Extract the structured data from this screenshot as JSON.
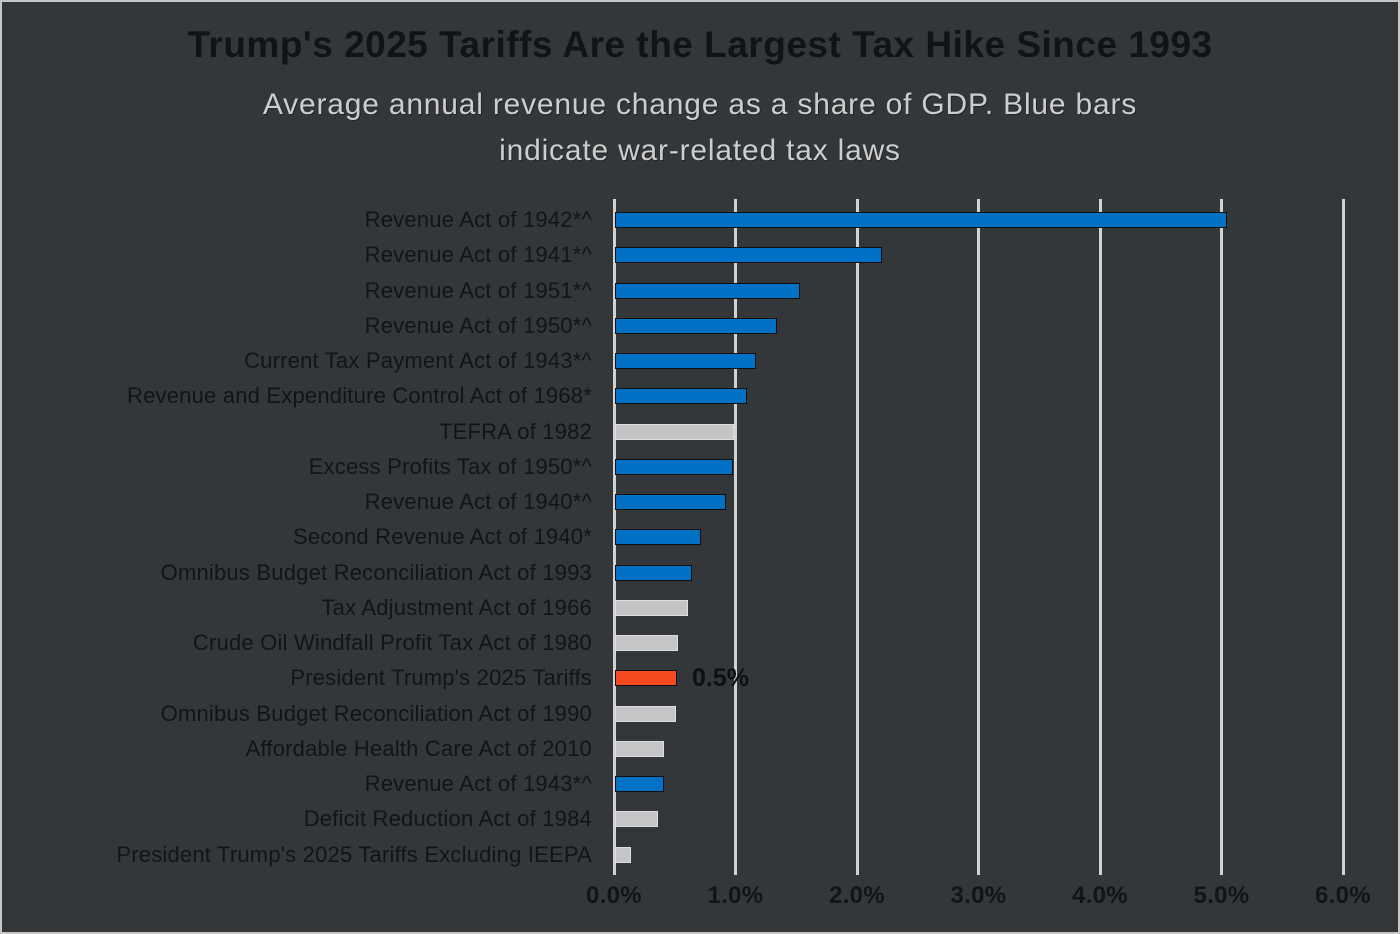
{
  "header": {
    "title": "Trump's 2025 Tariffs Are the Largest Tax Hike Since 1993",
    "subtitle_line1": "Average annual revenue change as a share of GDP. Blue bars",
    "subtitle_line2": "indicate war-related tax laws"
  },
  "colors": {
    "background": "#33373a",
    "frame_border": "#c6c6c6",
    "blue": "#0071c5",
    "orange": "#f54a1f",
    "gray": "#c5c5c7",
    "gridline": "#d2d2d2",
    "title_text": "#111315",
    "subtitle_text": "#cdcdcd",
    "label_text": "#121416"
  },
  "chart_data": {
    "type": "bar",
    "orientation": "horizontal",
    "title": "Trump's 2025 Tariffs Are the Largest Tax Hike Since 1993",
    "subtitle_lines": [
      "Average annual revenue change as a share of GDP. Blue bars",
      "indicate war-related tax laws"
    ],
    "xlabel": "",
    "ylabel": "",
    "xlim": [
      0,
      6
    ],
    "x_ticks": [
      "0.0%",
      "1.0%",
      "2.0%",
      "3.0%",
      "4.0%",
      "5.0%",
      "6.0%"
    ],
    "x_tick_values": [
      0,
      1,
      2,
      3,
      4,
      5,
      6
    ],
    "grid": "vertical",
    "legend": "none",
    "unit": "% of GDP",
    "bars": [
      {
        "label": "Revenue Act of 1942*^",
        "value": 5.04,
        "color": "blue"
      },
      {
        "label": "Revenue Act of 1941*^",
        "value": 2.2,
        "color": "blue"
      },
      {
        "label": "Revenue Act of 1951*^",
        "value": 1.52,
        "color": "blue"
      },
      {
        "label": "Revenue Act of 1950*^",
        "value": 1.33,
        "color": "blue"
      },
      {
        "label": "Current Tax Payment Act of 1943*^",
        "value": 1.16,
        "color": "blue"
      },
      {
        "label": "Revenue and Expenditure Control Act of 1968*",
        "value": 1.09,
        "color": "blue"
      },
      {
        "label": "TEFRA of 1982",
        "value": 0.98,
        "color": "gray"
      },
      {
        "label": "Excess Profits Tax of 1950*^",
        "value": 0.97,
        "color": "blue"
      },
      {
        "label": "Revenue Act of 1940*^",
        "value": 0.91,
        "color": "blue"
      },
      {
        "label": "Second Revenue Act of 1940*",
        "value": 0.71,
        "color": "blue"
      },
      {
        "label": "Omnibus Budget Reconciliation Act of 1993",
        "value": 0.63,
        "color": "blue"
      },
      {
        "label": "Tax Adjustment Act of 1966",
        "value": 0.6,
        "color": "gray"
      },
      {
        "label": "Crude Oil Windfall Profit Tax Act of 1980",
        "value": 0.52,
        "color": "gray"
      },
      {
        "label": "President Trump's 2025 Tariffs",
        "value": 0.51,
        "color": "orange",
        "annotation": "0.5%"
      },
      {
        "label": "Omnibus Budget Reconciliation Act of 1990",
        "value": 0.5,
        "color": "gray"
      },
      {
        "label": "Affordable Health Care Act of 2010",
        "value": 0.4,
        "color": "gray"
      },
      {
        "label": "Revenue Act of 1943*^",
        "value": 0.4,
        "color": "blue"
      },
      {
        "label": "Deficit Reduction Act of 1984",
        "value": 0.35,
        "color": "gray"
      },
      {
        "label": "President Trump's 2025 Tariffs Excluding IEEPA",
        "value": 0.13,
        "color": "gray"
      }
    ]
  }
}
